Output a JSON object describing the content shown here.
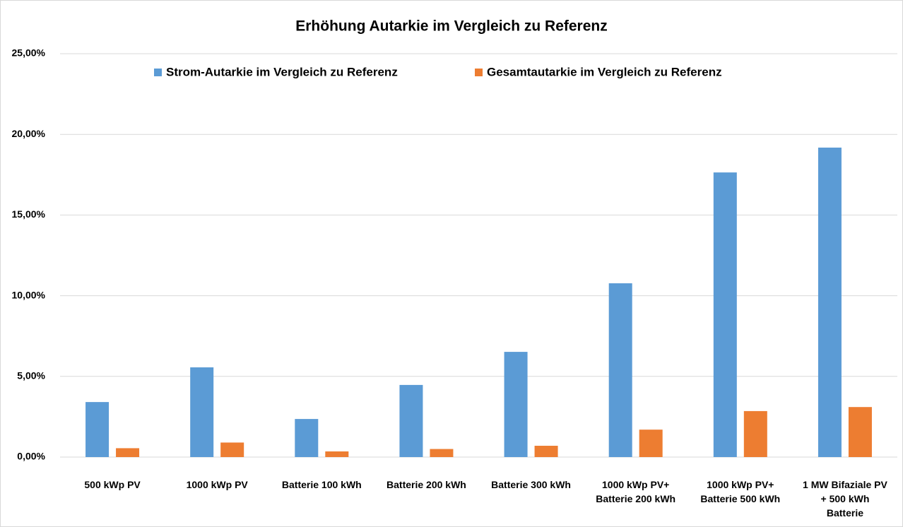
{
  "chart_data": {
    "type": "bar",
    "title": "Erhöhung Autarkie im Vergleich zu Referenz",
    "categories": [
      "500 kWp PV",
      "1000 kWp PV",
      "Batterie 100 kWh",
      "Batterie 200 kWh",
      "Batterie 300 kWh",
      "1000 kWp PV+\nBatterie 200 kWh",
      "1000 kWp PV+\nBatterie 500 kWh",
      "1 MW Bifaziale PV\n+ 500 kWh\nBatterie"
    ],
    "series": [
      {
        "name": "Strom-Autarkie im Vergleich zu Referenz",
        "color": "#5b9bd5",
        "values": [
          3.41,
          5.56,
          2.36,
          4.47,
          6.52,
          10.77,
          17.64,
          19.18
        ]
      },
      {
        "name": "Gesamtautarkie im Vergleich zu Referenz",
        "color": "#ed7d31",
        "values": [
          0.55,
          0.9,
          0.35,
          0.5,
          0.7,
          1.7,
          2.85,
          3.1
        ]
      }
    ],
    "ylim": [
      0,
      25
    ],
    "yticks": [
      {
        "value": 0,
        "label": "0,00%"
      },
      {
        "value": 5,
        "label": "5,00%"
      },
      {
        "value": 10,
        "label": "10,00%"
      },
      {
        "value": 15,
        "label": "15,00%"
      },
      {
        "value": 20,
        "label": "20,00%"
      },
      {
        "value": 25,
        "label": "25,00%"
      }
    ],
    "grid": true,
    "legend": "top"
  }
}
